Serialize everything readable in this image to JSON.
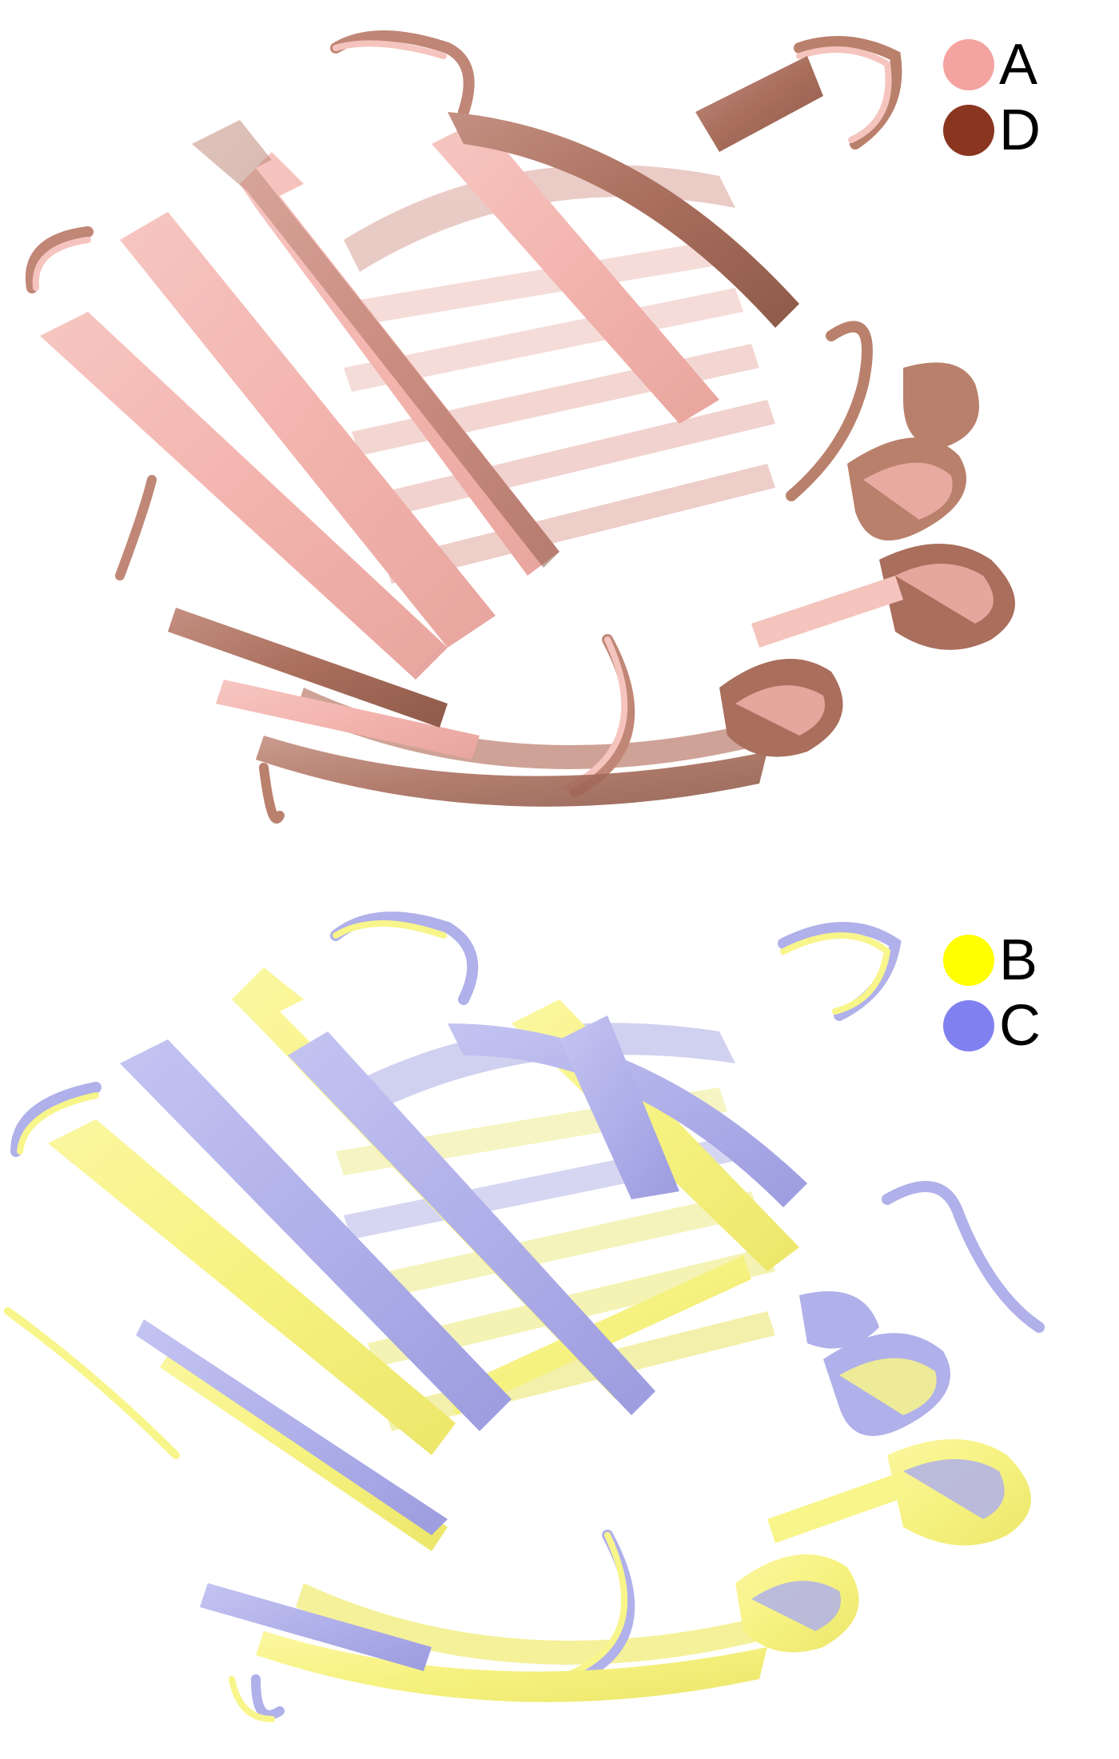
{
  "panels": [
    {
      "legend": [
        {
          "label": "A",
          "color": "#f4a3a0"
        },
        {
          "label": "D",
          "color": "#8a3520"
        }
      ],
      "colors": {
        "primary": "#f5bcb8",
        "secondary": "#b9806c"
      }
    },
    {
      "legend": [
        {
          "label": "B",
          "color": "#ffff00"
        },
        {
          "label": "C",
          "color": "#8080f0"
        }
      ],
      "colors": {
        "primary": "#f8f58a",
        "secondary": "#b2b2ec"
      }
    }
  ]
}
